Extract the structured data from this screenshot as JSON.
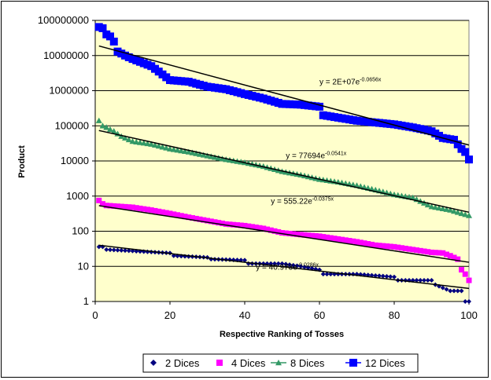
{
  "chart_data": {
    "type": "scatter",
    "title": "",
    "xlabel": "Respective Ranking of Tosses",
    "ylabel": "Product",
    "xlim": [
      0,
      100
    ],
    "ylim": [
      1,
      100000000
    ],
    "yscale": "log",
    "x_ticks": [
      0,
      20,
      40,
      60,
      80,
      100
    ],
    "y_ticks": [
      {
        "value": 1,
        "label": "1"
      },
      {
        "value": 10,
        "label": "10"
      },
      {
        "value": 100,
        "label": "100"
      },
      {
        "value": 1000,
        "label": "1000"
      },
      {
        "value": 10000,
        "label": "10000"
      },
      {
        "value": 100000,
        "label": "100000"
      },
      {
        "value": 1000000,
        "label": "1000000"
      },
      {
        "value": 10000000,
        "label": "10000000"
      },
      {
        "value": 100000000,
        "label": "100000000"
      }
    ],
    "grid": {
      "horizontal": true,
      "vertical": false
    },
    "plot_background": "#ffffcc",
    "legend_position": "bottom",
    "series": [
      {
        "name": "2 Dices",
        "marker": "diamond",
        "color": "#000080",
        "count": 100,
        "first": 36,
        "last": 1,
        "points": [
          [
            1,
            36
          ],
          [
            2,
            36
          ],
          [
            3,
            30
          ],
          [
            20,
            24
          ],
          [
            21,
            20
          ],
          [
            30,
            18
          ],
          [
            31,
            16
          ],
          [
            40,
            15
          ],
          [
            41,
            12
          ],
          [
            50,
            12
          ],
          [
            55,
            10
          ],
          [
            60,
            8
          ],
          [
            61,
            6
          ],
          [
            70,
            6
          ],
          [
            80,
            5
          ],
          [
            81,
            4
          ],
          [
            90,
            4
          ],
          [
            91,
            3
          ],
          [
            95,
            2
          ],
          [
            98,
            2
          ],
          [
            99,
            1
          ],
          [
            100,
            1
          ]
        ]
      },
      {
        "name": "4 Dices",
        "marker": "square",
        "color": "#ff00ff",
        "count": 100,
        "first": 750,
        "last": 4,
        "points": [
          [
            1,
            750
          ],
          [
            2,
            600
          ],
          [
            3,
            540
          ],
          [
            10,
            480
          ],
          [
            15,
            400
          ],
          [
            20,
            320
          ],
          [
            25,
            250
          ],
          [
            30,
            200
          ],
          [
            35,
            160
          ],
          [
            40,
            144
          ],
          [
            45,
            120
          ],
          [
            50,
            90
          ],
          [
            55,
            80
          ],
          [
            60,
            72
          ],
          [
            65,
            60
          ],
          [
            70,
            50
          ],
          [
            75,
            40
          ],
          [
            80,
            36
          ],
          [
            85,
            30
          ],
          [
            90,
            25
          ],
          [
            93,
            24
          ],
          [
            95,
            20
          ],
          [
            97,
            16
          ],
          [
            98,
            8
          ],
          [
            99,
            6
          ],
          [
            100,
            4
          ]
        ]
      },
      {
        "name": "8 Dices",
        "marker": "triangle",
        "color": "#339966",
        "count": 100,
        "first": 140000,
        "last": 280,
        "points": [
          [
            1,
            140000
          ],
          [
            2,
            100000
          ],
          [
            3,
            90000
          ],
          [
            5,
            70000
          ],
          [
            7,
            50000
          ],
          [
            10,
            36000
          ],
          [
            15,
            30000
          ],
          [
            20,
            22000
          ],
          [
            25,
            18000
          ],
          [
            30,
            14000
          ],
          [
            35,
            11000
          ],
          [
            40,
            9000
          ],
          [
            45,
            7000
          ],
          [
            50,
            5000
          ],
          [
            55,
            4000
          ],
          [
            60,
            3000
          ],
          [
            65,
            2500
          ],
          [
            70,
            2000
          ],
          [
            75,
            1500
          ],
          [
            80,
            1100
          ],
          [
            85,
            900
          ],
          [
            90,
            500
          ],
          [
            95,
            400
          ],
          [
            98,
            320
          ],
          [
            100,
            280
          ]
        ]
      },
      {
        "name": "12 Dices",
        "marker": "square",
        "color": "#0000ff",
        "count": 100,
        "first": 65000000,
        "last": 11000,
        "points": [
          [
            1,
            65000000
          ],
          [
            2,
            60000000
          ],
          [
            3,
            40000000
          ],
          [
            4,
            35000000
          ],
          [
            5,
            25000000
          ],
          [
            6,
            13000000
          ],
          [
            8,
            10000000
          ],
          [
            10,
            8000000
          ],
          [
            15,
            5000000
          ],
          [
            17,
            3500000
          ],
          [
            20,
            2000000
          ],
          [
            25,
            1800000
          ],
          [
            30,
            1300000
          ],
          [
            35,
            1100000
          ],
          [
            40,
            800000
          ],
          [
            45,
            600000
          ],
          [
            50,
            420000
          ],
          [
            55,
            400000
          ],
          [
            60,
            350000
          ],
          [
            61,
            200000
          ],
          [
            70,
            140000
          ],
          [
            80,
            110000
          ],
          [
            85,
            90000
          ],
          [
            90,
            70000
          ],
          [
            93,
            45000
          ],
          [
            96,
            40000
          ],
          [
            98,
            22000
          ],
          [
            99,
            18000
          ],
          [
            100,
            11000
          ]
        ]
      }
    ],
    "trendlines": [
      {
        "series": "2 Dices",
        "a": 40.973,
        "b": -0.0286,
        "equation_main": "y = 40.973e",
        "equation_exp": "-0.0286x",
        "label_x": 43,
        "label_y": 8
      },
      {
        "series": "4 Dices",
        "a": 555.22,
        "b": -0.0375,
        "equation_main": "y = 555.22e",
        "equation_exp": "-0.0375x",
        "label_x": 47,
        "label_y": 600
      },
      {
        "series": "8 Dices",
        "a": 77694,
        "b": -0.0541,
        "equation_main": "y = 77694e",
        "equation_exp": "-0.0541x",
        "label_x": 51,
        "label_y": 12000
      },
      {
        "series": "12 Dices",
        "a": 20000000,
        "b": -0.0656,
        "equation_main": "y = 2E+07e",
        "equation_exp": "-0.0656x",
        "label_x": 60,
        "label_y": 1500000
      }
    ]
  }
}
